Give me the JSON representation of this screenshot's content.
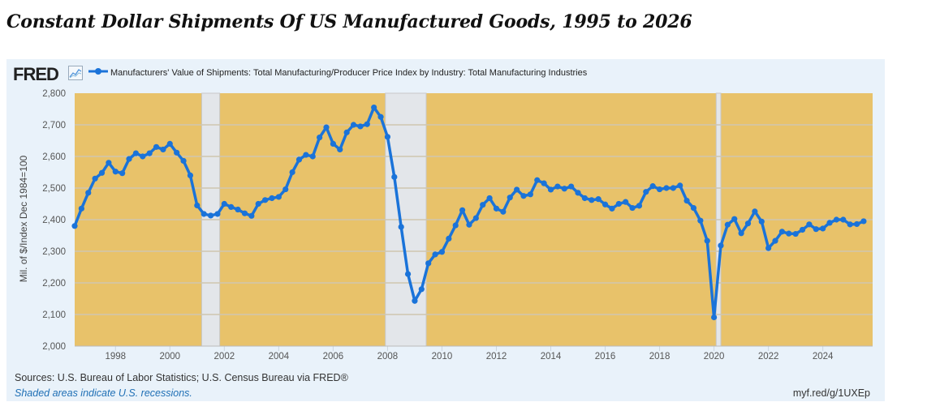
{
  "headline": "Constant Dollar Shipments Of US Manufactured Goods, 1995 to 2026",
  "header": {
    "logo": "FRED",
    "logo_icon": "line-chart-icon",
    "legend_label": "Manufacturers' Value of Shipments: Total Manufacturing/Producer Price Index by Industry: Total Manufacturing Industries"
  },
  "footer": {
    "sources": "Sources: U.S. Bureau of Labor Statistics; U.S. Census Bureau via FRED®",
    "recession_note": "Shaded areas indicate U.S. recessions.",
    "short_url": "myf.red/g/1UXEp"
  },
  "colors": {
    "line": "#1a73d9",
    "plot_bg": "#e8c26a",
    "recession": "#e3e6ea",
    "panel": "#e9f2fa",
    "grid": "#cfc6b0"
  },
  "chart_data": {
    "type": "line",
    "title": "",
    "xlabel": "",
    "ylabel": "Mil. of $/Index Dec 1984=100",
    "ylim": [
      2000,
      2800
    ],
    "xlim": [
      1996.5,
      2025.83
    ],
    "yticks": [
      "2,000",
      "2,100",
      "2,200",
      "2,300",
      "2,400",
      "2,500",
      "2,600",
      "2,700",
      "2,800"
    ],
    "ytick_values": [
      2000,
      2100,
      2200,
      2300,
      2400,
      2500,
      2600,
      2700,
      2800
    ],
    "xticks": [
      "1998",
      "2000",
      "2002",
      "2004",
      "2006",
      "2008",
      "2010",
      "2012",
      "2014",
      "2016",
      "2018",
      "2020",
      "2022",
      "2024"
    ],
    "xtick_values": [
      1998,
      2000,
      2002,
      2004,
      2006,
      2008,
      2010,
      2012,
      2014,
      2016,
      2018,
      2020,
      2022,
      2024
    ],
    "grid": true,
    "legend": "top-left",
    "frequency": "quarterly",
    "start": "1996-Q3",
    "recessions": [
      [
        2001.17,
        2001.83
      ],
      [
        2007.92,
        2009.42
      ],
      [
        2020.08,
        2020.25
      ]
    ],
    "series": [
      {
        "name": "Manufacturers' Value of Shipments: Total Manufacturing/Producer Price Index by Industry: Total Manufacturing Industries",
        "values": [
          2380,
          2435,
          2485,
          2530,
          2548,
          2580,
          2552,
          2547,
          2592,
          2610,
          2600,
          2610,
          2630,
          2622,
          2640,
          2612,
          2586,
          2540,
          2445,
          2418,
          2413,
          2418,
          2450,
          2440,
          2432,
          2420,
          2412,
          2450,
          2462,
          2468,
          2472,
          2496,
          2550,
          2590,
          2605,
          2600,
          2660,
          2692,
          2640,
          2622,
          2676,
          2700,
          2695,
          2702,
          2755,
          2725,
          2662,
          2535,
          2377,
          2228,
          2143,
          2180,
          2262,
          2290,
          2298,
          2340,
          2382,
          2430,
          2384,
          2405,
          2447,
          2468,
          2435,
          2425,
          2470,
          2495,
          2475,
          2480,
          2525,
          2515,
          2495,
          2505,
          2498,
          2505,
          2485,
          2468,
          2462,
          2465,
          2448,
          2435,
          2450,
          2456,
          2437,
          2444,
          2488,
          2506,
          2496,
          2500,
          2500,
          2508,
          2460,
          2437,
          2397,
          2333,
          2091,
          2318,
          2384,
          2402,
          2357,
          2388,
          2426,
          2394,
          2310,
          2333,
          2362,
          2356,
          2355,
          2368,
          2385,
          2370,
          2372,
          2390,
          2400,
          2400,
          2385,
          2386,
          2395
        ]
      }
    ]
  }
}
